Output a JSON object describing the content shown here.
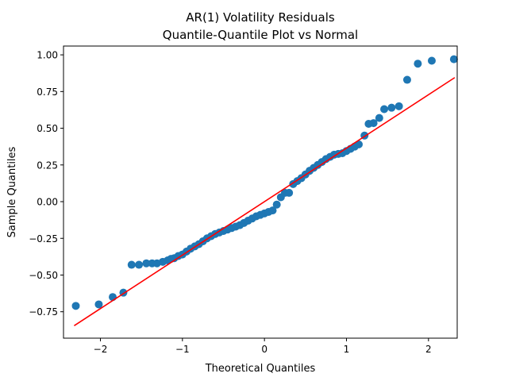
{
  "chart_data": {
    "type": "scatter",
    "title": "AR(1) Volatility Residuals",
    "subtitle": "Quantile-Quantile Plot vs Normal",
    "xlabel": "Theoretical Quantiles",
    "ylabel": "Sample Quantiles",
    "xlim": [
      -2.45,
      2.35
    ],
    "ylim": [
      -0.93,
      1.06
    ],
    "xticks": [
      -2,
      -1,
      0,
      1,
      2
    ],
    "xtick_labels": [
      "−2",
      "−1",
      "0",
      "1",
      "2"
    ],
    "yticks": [
      -0.75,
      -0.5,
      -0.25,
      0,
      0.25,
      0.5,
      0.75,
      1.0
    ],
    "ytick_labels": [
      "−0.75",
      "−0.50",
      "−0.25",
      "0.00",
      "0.25",
      "0.50",
      "0.75",
      "1.00"
    ],
    "grid": false,
    "point_color": "#1f77b4",
    "line_color": "#ff0000",
    "reference_line": {
      "x": [
        -2.32,
        2.32
      ],
      "y": [
        -0.845,
        0.845
      ]
    },
    "points": [
      [
        -2.3,
        -0.71
      ],
      [
        -2.02,
        -0.7
      ],
      [
        -1.85,
        -0.65
      ],
      [
        -1.72,
        -0.62
      ],
      [
        -1.62,
        -0.43
      ],
      [
        -1.53,
        -0.43
      ],
      [
        -1.44,
        -0.42
      ],
      [
        -1.37,
        -0.42
      ],
      [
        -1.31,
        -0.42
      ],
      [
        -1.24,
        -0.41
      ],
      [
        -1.18,
        -0.4
      ],
      [
        -1.14,
        -0.39
      ],
      [
        -1.1,
        -0.385
      ],
      [
        -1.05,
        -0.37
      ],
      [
        -1.0,
        -0.36
      ],
      [
        -0.95,
        -0.34
      ],
      [
        -0.9,
        -0.32
      ],
      [
        -0.85,
        -0.305
      ],
      [
        -0.8,
        -0.29
      ],
      [
        -0.75,
        -0.27
      ],
      [
        -0.7,
        -0.25
      ],
      [
        -0.65,
        -0.235
      ],
      [
        -0.6,
        -0.22
      ],
      [
        -0.55,
        -0.21
      ],
      [
        -0.5,
        -0.2
      ],
      [
        -0.45,
        -0.19
      ],
      [
        -0.4,
        -0.18
      ],
      [
        -0.35,
        -0.17
      ],
      [
        -0.3,
        -0.16
      ],
      [
        -0.25,
        -0.145
      ],
      [
        -0.2,
        -0.13
      ],
      [
        -0.15,
        -0.115
      ],
      [
        -0.1,
        -0.1
      ],
      [
        -0.05,
        -0.09
      ],
      [
        0.0,
        -0.08
      ],
      [
        0.05,
        -0.07
      ],
      [
        0.1,
        -0.06
      ],
      [
        0.15,
        -0.02
      ],
      [
        0.2,
        0.03
      ],
      [
        0.25,
        0.06
      ],
      [
        0.3,
        0.06
      ],
      [
        0.35,
        0.12
      ],
      [
        0.4,
        0.14
      ],
      [
        0.45,
        0.16
      ],
      [
        0.5,
        0.185
      ],
      [
        0.55,
        0.21
      ],
      [
        0.6,
        0.23
      ],
      [
        0.65,
        0.25
      ],
      [
        0.7,
        0.27
      ],
      [
        0.75,
        0.29
      ],
      [
        0.8,
        0.305
      ],
      [
        0.85,
        0.32
      ],
      [
        0.9,
        0.325
      ],
      [
        0.95,
        0.33
      ],
      [
        1.0,
        0.345
      ],
      [
        1.05,
        0.36
      ],
      [
        1.1,
        0.375
      ],
      [
        1.15,
        0.39
      ],
      [
        1.22,
        0.45
      ],
      [
        1.27,
        0.53
      ],
      [
        1.33,
        0.535
      ],
      [
        1.4,
        0.57
      ],
      [
        1.46,
        0.63
      ],
      [
        1.55,
        0.64
      ],
      [
        1.64,
        0.65
      ],
      [
        1.74,
        0.83
      ],
      [
        1.87,
        0.94
      ],
      [
        2.04,
        0.96
      ],
      [
        2.31,
        0.97
      ]
    ]
  }
}
